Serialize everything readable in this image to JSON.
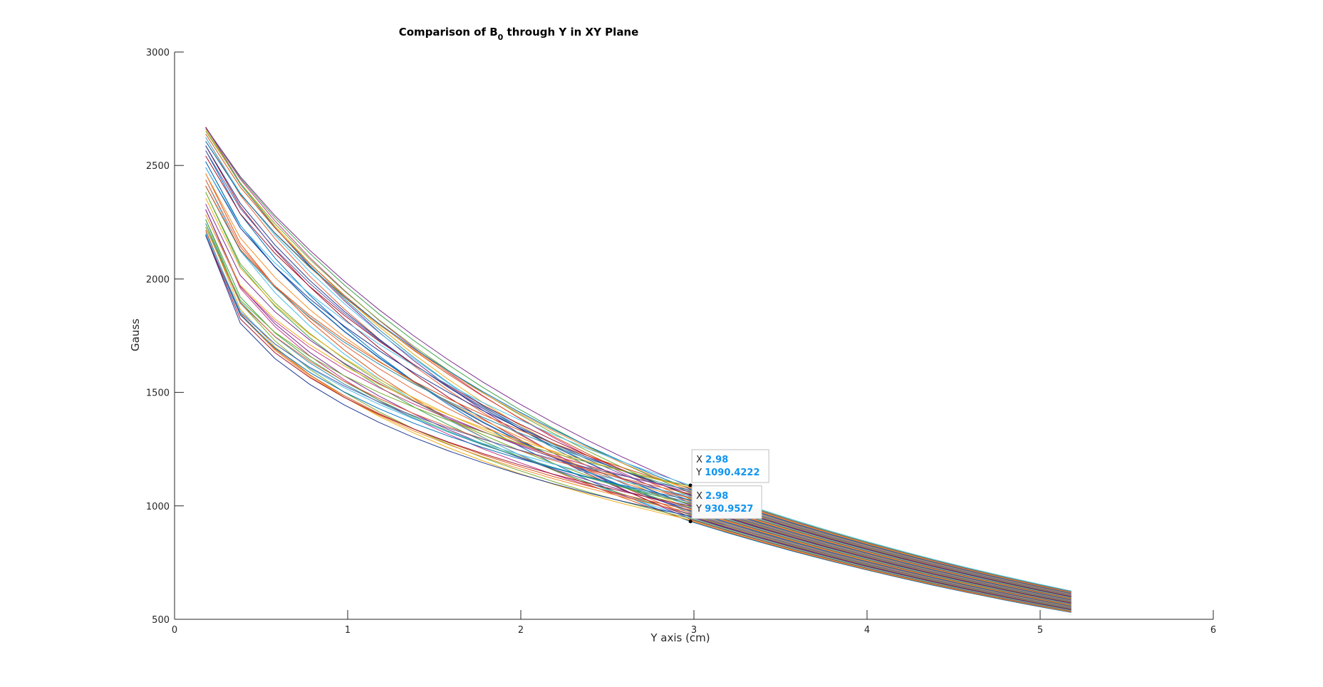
{
  "chart_data": {
    "type": "line",
    "title": {
      "prefix": "Comparison of B",
      "subscript": "0",
      "suffix": " through Y in XY  Plane"
    },
    "xlabel": "Y axis (cm)",
    "ylabel": "Gauss",
    "xlim": [
      0,
      6
    ],
    "ylim": [
      500,
      3000
    ],
    "x_ticks": [
      "0",
      "1",
      "2",
      "3",
      "4",
      "5",
      "6"
    ],
    "y_ticks": [
      "500",
      "1000",
      "1500",
      "2000",
      "2500",
      "3000"
    ],
    "grid": false,
    "legend": "none",
    "series_model": {
      "x": [
        0.18,
        0.38,
        0.58,
        0.78,
        0.98,
        1.18,
        1.38,
        1.58,
        1.78,
        1.98,
        2.18,
        2.38,
        2.58,
        2.78,
        2.98,
        3.18,
        3.38,
        3.58,
        3.78,
        3.98,
        4.18,
        4.38,
        4.58,
        4.78,
        4.98,
        5.18
      ],
      "count": 48,
      "start_range": [
        2190,
        2670
      ],
      "value_at_2_98": [
        930.9527,
        1090.4222
      ],
      "end_range": [
        530,
        625
      ]
    },
    "colors": [
      "#0072bd",
      "#d95319",
      "#edb120",
      "#7e2f8e",
      "#77ac30",
      "#4dbeee",
      "#a2142f",
      "#1f3a93",
      "#e3633b",
      "#3fa34d",
      "#c23b8a",
      "#2a8fa6",
      "#f28e2b",
      "#5b5ea6"
    ],
    "datatips": [
      {
        "x_key": "X",
        "x_value": "2.98",
        "y_key": "Y",
        "y_value": "1090.4222",
        "x": 2.98,
        "y": 1090.4222
      },
      {
        "x_key": "X",
        "x_value": "2.98",
        "y_key": "Y",
        "y_value": "930.9527",
        "x": 2.98,
        "y": 930.9527
      }
    ]
  }
}
